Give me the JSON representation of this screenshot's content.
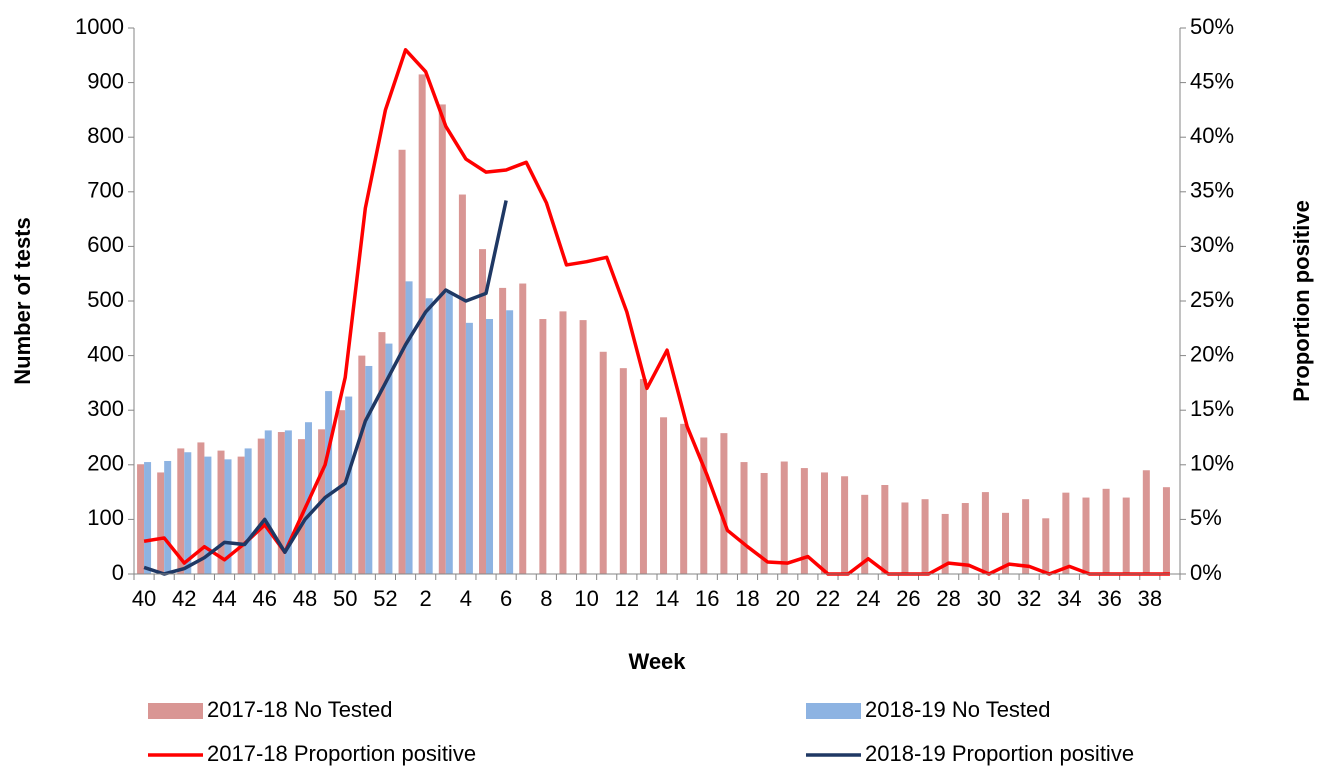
{
  "chart_data": {
    "type": "bar-line",
    "y_label": "Number of tests",
    "y2_label": "Proportion positive",
    "x_label": "Week",
    "categories": [
      "40",
      null,
      "42",
      null,
      "44",
      null,
      "46",
      null,
      "48",
      null,
      "50",
      null,
      "52",
      null,
      "2",
      null,
      "4",
      null,
      "6",
      null,
      "8",
      null,
      "10",
      null,
      "12",
      null,
      "14",
      null,
      "16",
      null,
      "18",
      null,
      "20",
      null,
      "22",
      null,
      "24",
      null,
      "26",
      null,
      "28",
      null,
      "30",
      null,
      "32",
      null,
      "34",
      null,
      "36",
      null,
      "38",
      null
    ],
    "ylim": [
      0,
      1000
    ],
    "yticks": [
      0,
      100,
      200,
      300,
      400,
      500,
      600,
      700,
      800,
      900,
      1000
    ],
    "y2lim": [
      0,
      50
    ],
    "y2ticks": [
      {
        "value": 0,
        "label": "0%"
      },
      {
        "value": 5,
        "label": "5%"
      },
      {
        "value": 10,
        "label": "10%"
      },
      {
        "value": 15,
        "label": "15%"
      },
      {
        "value": 20,
        "label": "20%"
      },
      {
        "value": 25,
        "label": "25%"
      },
      {
        "value": 30,
        "label": "30%"
      },
      {
        "value": 35,
        "label": "35%"
      },
      {
        "value": 40,
        "label": "40%"
      },
      {
        "value": 45,
        "label": "45%"
      },
      {
        "value": 50,
        "label": "50%"
      }
    ],
    "series": [
      {
        "name": "2017-18 No Tested",
        "kind": "bar",
        "color": "#d99694",
        "values": [
          201,
          186,
          230,
          241,
          226,
          215,
          248,
          260,
          247,
          265,
          300,
          400,
          443,
          777,
          915,
          860,
          695,
          595,
          524,
          532,
          467,
          481,
          465,
          407,
          377,
          357,
          287,
          275,
          250,
          258,
          205,
          185,
          206,
          194,
          186,
          179,
          145,
          163,
          131,
          137,
          110,
          130,
          150,
          112,
          137,
          102,
          149,
          140,
          156,
          140,
          190,
          159
        ]
      },
      {
        "name": "2018-19 No Tested",
        "kind": "bar",
        "color": "#8db3e2",
        "values": [
          205,
          207,
          223,
          215,
          210,
          230,
          263,
          263,
          278,
          335,
          325,
          381,
          422,
          536,
          505,
          515,
          460,
          467,
          483,
          null,
          null,
          null,
          null,
          null,
          null,
          null,
          null,
          null,
          null,
          null,
          null,
          null,
          null,
          null,
          null,
          null,
          null,
          null,
          null,
          null,
          null,
          null,
          null,
          null,
          null,
          null,
          null,
          null,
          null,
          null,
          null,
          null
        ]
      },
      {
        "name": "2017-18 Proportion positive",
        "kind": "line",
        "axis": "y2",
        "color": "#ff0000",
        "values": [
          3.0,
          3.3,
          1.0,
          2.5,
          1.3,
          2.8,
          4.5,
          2.0,
          6.0,
          10,
          18,
          33.5,
          42.5,
          48,
          46,
          41,
          38,
          36.8,
          37,
          37.7,
          34,
          28.3,
          28.6,
          29,
          24,
          17,
          20.5,
          13.5,
          9,
          4,
          2.5,
          1.1,
          1.0,
          1.6,
          0,
          0,
          1.4,
          0,
          0,
          0,
          1.0,
          0.8,
          0,
          0.9,
          0.7,
          0,
          0.7,
          0,
          0,
          0,
          0,
          0
        ]
      },
      {
        "name": "2018-19 Proportion positive",
        "kind": "line",
        "axis": "y2",
        "color": "#1f3864",
        "values": [
          0.6,
          0,
          0.5,
          1.5,
          2.9,
          2.7,
          5.0,
          2.0,
          5.0,
          7.0,
          8.3,
          14,
          17.5,
          21,
          24,
          26,
          25,
          25.7,
          34.2,
          null,
          null,
          null,
          null,
          null,
          null,
          null,
          null,
          null,
          null,
          null,
          null,
          null,
          null,
          null,
          null,
          null,
          null,
          null,
          null,
          null,
          null,
          null,
          null,
          null,
          null,
          null,
          null,
          null,
          null,
          null,
          null,
          null
        ]
      }
    ]
  }
}
